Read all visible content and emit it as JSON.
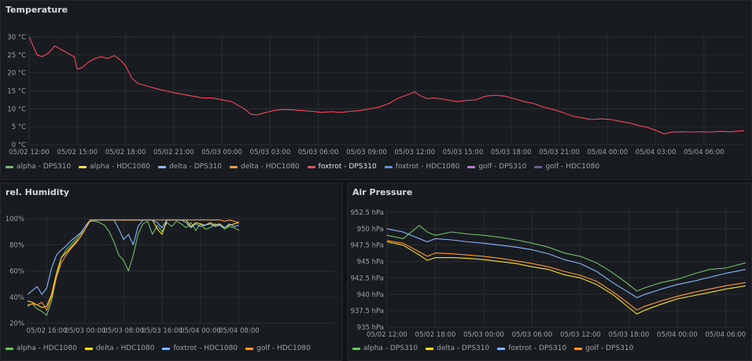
{
  "panels": {
    "temperature": {
      "title": "Temperature",
      "legend": [
        {
          "label": "alpha - DPS310",
          "color": "#73bf69"
        },
        {
          "label": "alpha - HDC1080",
          "color": "#fade2a"
        },
        {
          "label": "delta - DPS310",
          "color": "#8ab8ff"
        },
        {
          "label": "delta - HDC1080",
          "color": "#ff9830"
        },
        {
          "label": "foxtrot - DPS310",
          "color": "#f2495c",
          "active": true
        },
        {
          "label": "foxtrot - HDC1080",
          "color": "#5794f2"
        },
        {
          "label": "golf - DPS310",
          "color": "#b877d9"
        },
        {
          "label": "golf - HDC1080",
          "color": "#705da0"
        }
      ]
    },
    "humidity": {
      "title": "rel. Humidity",
      "legend": [
        {
          "label": "alpha - HDC1080",
          "color": "#73bf69"
        },
        {
          "label": "delta - HDC1080",
          "color": "#fade2a"
        },
        {
          "label": "foxtrot - HDC1080",
          "color": "#8ab8ff"
        },
        {
          "label": "golf - HDC1080",
          "color": "#ff9830"
        }
      ]
    },
    "pressure": {
      "title": "Air Pressure",
      "legend": [
        {
          "label": "alpha - DPS310",
          "color": "#73bf69"
        },
        {
          "label": "delta - DPS310",
          "color": "#fade2a"
        },
        {
          "label": "foxtrot - DPS310",
          "color": "#8ab8ff"
        },
        {
          "label": "golf - DPS310",
          "color": "#ff9830"
        }
      ]
    }
  },
  "chart_data": [
    {
      "type": "line",
      "title": "Temperature",
      "ylim": [
        0,
        30
      ],
      "xlim": [
        0,
        44.5
      ],
      "x_unit": "hours since 05/02 12:00",
      "yticks": [
        {
          "v": 0,
          "label": "0 °C"
        },
        {
          "v": 5,
          "label": "5 °C"
        },
        {
          "v": 10,
          "label": "10 °C"
        },
        {
          "v": 15,
          "label": "15 °C"
        },
        {
          "v": 20,
          "label": "20 °C"
        },
        {
          "v": 25,
          "label": "25 °C"
        },
        {
          "v": 30,
          "label": "30 °C"
        }
      ],
      "xticks": [
        {
          "v": 0,
          "label": "05/02 12:00"
        },
        {
          "v": 3,
          "label": "05/02 15:00"
        },
        {
          "v": 6,
          "label": "05/02 18:00"
        },
        {
          "v": 9,
          "label": "05/02 21:00"
        },
        {
          "v": 12,
          "label": "05/03 00:00"
        },
        {
          "v": 15,
          "label": "05/03 03:00"
        },
        {
          "v": 18,
          "label": "05/03 06:00"
        },
        {
          "v": 21,
          "label": "05/03 09:00"
        },
        {
          "v": 24,
          "label": "05/03 12:00"
        },
        {
          "v": 27,
          "label": "05/03 15:00"
        },
        {
          "v": 30,
          "label": "05/03 18:00"
        },
        {
          "v": 33,
          "label": "05/03 21:00"
        },
        {
          "v": 36,
          "label": "05/04 00:00"
        },
        {
          "v": 39,
          "label": "05/04 03:00"
        },
        {
          "v": 42,
          "label": "05/04 06:00"
        }
      ],
      "series": [
        {
          "name": "foxtrot - DPS310",
          "color": "#f2495c",
          "x": [
            0,
            0.2,
            0.5,
            0.8,
            1.2,
            1.6,
            2.0,
            2.4,
            2.8,
            3.0,
            3.3,
            3.7,
            4.1,
            4.5,
            4.9,
            5.3,
            5.7,
            6.0,
            6.4,
            6.8,
            7.2,
            7.6,
            8.0,
            8.5,
            9.0,
            9.6,
            10.2,
            10.8,
            11.4,
            12.0,
            12.6,
            13.0,
            13.4,
            13.8,
            14.2,
            14.6,
            15.2,
            15.8,
            16.4,
            17.0,
            17.6,
            18.2,
            18.8,
            19.4,
            20.0,
            20.6,
            21.2,
            21.8,
            22.4,
            23.0,
            23.6,
            24.0,
            24.4,
            24.8,
            25.2,
            25.6,
            26.0,
            26.6,
            27.2,
            27.8,
            28.4,
            29.0,
            29.6,
            30.2,
            30.8,
            31.4,
            32.0,
            32.6,
            33.2,
            33.8,
            34.4,
            35.0,
            35.6,
            36.2,
            36.8,
            37.4,
            38.0,
            38.5,
            39.0,
            39.5,
            40.0,
            40.6,
            41.2,
            41.8,
            42.4,
            43.0,
            43.6,
            44.2,
            44.5
          ],
          "y": [
            30,
            28,
            25,
            24.5,
            25.5,
            27.5,
            26.5,
            25.5,
            24.5,
            21,
            21.5,
            23,
            24,
            24.5,
            24,
            24.8,
            23.5,
            22,
            18.5,
            17,
            16.5,
            16,
            15.5,
            15,
            14.5,
            14,
            13.5,
            13,
            13,
            12.5,
            12,
            11,
            10,
            8.5,
            8.3,
            8.8,
            9.5,
            9.8,
            9.7,
            9.5,
            9.3,
            9.0,
            9.2,
            9.0,
            9.3,
            9.5,
            10,
            10.5,
            11.5,
            13,
            14,
            14.7,
            13.5,
            12.8,
            13.0,
            12.8,
            12.5,
            12.0,
            12.3,
            12.5,
            13.5,
            13.8,
            13.5,
            12.8,
            12.0,
            11.5,
            10.5,
            9.8,
            9.0,
            8.0,
            7.5,
            7.0,
            7.2,
            7.0,
            6.5,
            6.0,
            5.3,
            4.8,
            4.0,
            3.0,
            3.5,
            3.6,
            3.5,
            3.6,
            3.5,
            3.7,
            3.6,
            3.8,
            3.9
          ]
        }
      ]
    },
    {
      "type": "line",
      "title": "rel. Humidity",
      "ylim": [
        20,
        100
      ],
      "xlim": [
        0,
        64
      ],
      "x_unit": "hours since 05/02 12:00",
      "yticks": [
        {
          "v": 20,
          "label": "20%"
        },
        {
          "v": 40,
          "label": "40%"
        },
        {
          "v": 60,
          "label": "60%"
        },
        {
          "v": 80,
          "label": "80%"
        },
        {
          "v": 100,
          "label": "100%"
        }
      ],
      "xticks": [
        {
          "v": 4,
          "label": "05/02 16:00"
        },
        {
          "v": 12,
          "label": "05/03 00:00"
        },
        {
          "v": 20,
          "label": "05/03 08:00"
        },
        {
          "v": 28,
          "label": "05/03 16:00"
        },
        {
          "v": 36,
          "label": "05/04 00:00"
        },
        {
          "v": 44,
          "label": "05/04 08:00"
        }
      ],
      "series": [
        {
          "name": "alpha - HDC1080",
          "color": "#73bf69",
          "x": [
            0,
            1,
            2,
            3,
            4,
            5,
            6,
            7,
            8,
            9,
            10,
            11,
            12,
            13,
            14,
            15,
            16,
            17,
            18,
            19,
            20,
            21,
            22,
            23,
            24,
            25,
            26,
            27,
            28,
            29,
            30,
            31,
            32,
            33,
            34,
            35,
            36,
            37,
            38,
            39,
            40,
            41,
            42,
            43,
            44
          ],
          "y": [
            33,
            35,
            31,
            29,
            26,
            37,
            55,
            70,
            76,
            80,
            84,
            88,
            92,
            98,
            98,
            97,
            95,
            90,
            82,
            72,
            68,
            60,
            72,
            88,
            96,
            98,
            88,
            95,
            90,
            97,
            94,
            98,
            96,
            93,
            97,
            91,
            96,
            92,
            93,
            96,
            95,
            92,
            94,
            93,
            91
          ]
        },
        {
          "name": "delta - HDC1080",
          "color": "#fade2a",
          "x": [
            0,
            1,
            2,
            3,
            4,
            5,
            6,
            7,
            8,
            9,
            10,
            11,
            12,
            13,
            14,
            15,
            16,
            17,
            18,
            19,
            20,
            21,
            22,
            23,
            24,
            25,
            26,
            27,
            28,
            29,
            30,
            31,
            32,
            33,
            34,
            35,
            36,
            37,
            38,
            39,
            40,
            41,
            42,
            43,
            44
          ],
          "y": [
            37,
            36,
            34,
            32,
            33,
            42,
            58,
            70,
            74,
            78,
            82,
            86,
            92,
            99,
            99,
            99,
            99,
            99,
            99,
            99,
            99,
            99,
            99,
            99,
            99,
            99,
            99,
            92,
            88,
            99,
            99,
            99,
            99,
            99,
            94,
            97,
            96,
            95,
            97,
            95,
            96,
            93,
            95,
            96,
            97
          ]
        },
        {
          "name": "foxtrot - HDC1080",
          "color": "#8ab8ff",
          "x": [
            0,
            1,
            2,
            3,
            4,
            5,
            6,
            7,
            8,
            9,
            10,
            11,
            12,
            13,
            14,
            15,
            16,
            17,
            18,
            19,
            20,
            21,
            22,
            23,
            24,
            25,
            26,
            27,
            28,
            29,
            30,
            31,
            32,
            33,
            34,
            35,
            36,
            37,
            38,
            39,
            40,
            41,
            42,
            43,
            44
          ],
          "y": [
            42,
            45,
            48,
            42,
            47,
            62,
            72,
            76,
            79,
            83,
            86,
            89,
            94,
            99,
            99,
            99,
            99,
            99,
            99,
            92,
            84,
            88,
            80,
            94,
            99,
            99,
            99,
            97,
            93,
            99,
            99,
            99,
            99,
            97,
            93,
            96,
            94,
            95,
            96,
            94,
            95,
            93,
            96,
            94,
            95
          ]
        },
        {
          "name": "golf - HDC1080",
          "color": "#ff9830",
          "x": [
            0,
            1,
            2,
            3,
            4,
            5,
            6,
            7,
            8,
            9,
            10,
            11,
            12,
            13,
            14,
            15,
            16,
            17,
            18,
            19,
            20,
            21,
            22,
            23,
            24,
            25,
            26,
            27,
            28,
            29,
            30,
            31,
            32,
            33,
            34,
            35,
            36,
            37,
            38,
            39,
            40,
            41,
            42,
            43,
            44
          ],
          "y": [
            34,
            35,
            34,
            36,
            30,
            40,
            55,
            66,
            72,
            77,
            81,
            86,
            92,
            99,
            99,
            99,
            99,
            99,
            99,
            99,
            99,
            99,
            99,
            99,
            99,
            99,
            99,
            99,
            99,
            99,
            99,
            99,
            99,
            99,
            99,
            99,
            99,
            99,
            99,
            99,
            99,
            98,
            99,
            98,
            97
          ]
        }
      ]
    },
    {
      "type": "line",
      "title": "Air Pressure",
      "ylim": [
        935,
        952.5
      ],
      "xlim": [
        0,
        44.5
      ],
      "x_unit": "hours since 05/02 12:00",
      "yticks": [
        {
          "v": 935,
          "label": "935 hPa"
        },
        {
          "v": 937.5,
          "label": "937.5 hPa"
        },
        {
          "v": 940,
          "label": "940 hPa"
        },
        {
          "v": 942.5,
          "label": "942.5 hPa"
        },
        {
          "v": 945,
          "label": "945 hPa"
        },
        {
          "v": 947.5,
          "label": "947.5 hPa"
        },
        {
          "v": 950,
          "label": "950 hPa"
        },
        {
          "v": 952.5,
          "label": "952.5 hPa"
        }
      ],
      "xticks": [
        {
          "v": 0,
          "label": "05/02 12:00"
        },
        {
          "v": 6,
          "label": "05/02 18:00"
        },
        {
          "v": 12,
          "label": "05/03 00:00"
        },
        {
          "v": 18,
          "label": "05/03 06:00"
        },
        {
          "v": 24,
          "label": "05/03 12:00"
        },
        {
          "v": 30,
          "label": "05/03 18:00"
        },
        {
          "v": 36,
          "label": "05/04 00:00"
        },
        {
          "v": 42,
          "label": "05/04 06:00"
        }
      ],
      "series": [
        {
          "name": "alpha - DPS310",
          "color": "#73bf69",
          "x": [
            0,
            2,
            4,
            5,
            6,
            8,
            10,
            12,
            14,
            16,
            18,
            20,
            22,
            24,
            26,
            28,
            30,
            31,
            32,
            34,
            36,
            38,
            40,
            42,
            44.5
          ],
          "y": [
            949,
            948.5,
            950.5,
            949.5,
            949,
            949.5,
            949.2,
            949,
            948.7,
            948.3,
            947.8,
            947.2,
            946.3,
            945.8,
            944.8,
            943.3,
            941.5,
            940.5,
            941.0,
            941.8,
            942.3,
            943.1,
            943.8,
            944.0,
            944.8
          ]
        },
        {
          "name": "delta - DPS310",
          "color": "#fade2a",
          "x": [
            0,
            2,
            4,
            5,
            6,
            8,
            10,
            12,
            14,
            16,
            18,
            20,
            22,
            24,
            26,
            28,
            30,
            31,
            32,
            34,
            36,
            38,
            40,
            42,
            44.5
          ],
          "y": [
            948,
            947.5,
            946.0,
            945.2,
            945.6,
            945.6,
            945.5,
            945.3,
            945.0,
            944.7,
            944.2,
            943.8,
            943.0,
            942.5,
            941.5,
            940.0,
            938.0,
            937.0,
            937.6,
            938.5,
            939.3,
            939.8,
            940.3,
            940.8,
            941.3
          ]
        },
        {
          "name": "foxtrot - DPS310",
          "color": "#8ab8ff",
          "x": [
            0,
            2,
            4,
            5,
            6,
            8,
            10,
            12,
            14,
            16,
            18,
            20,
            22,
            24,
            26,
            28,
            30,
            31,
            32,
            34,
            36,
            38,
            40,
            42,
            44.5
          ],
          "y": [
            950,
            949.5,
            948.5,
            948.0,
            948.5,
            948.3,
            948.0,
            947.8,
            947.5,
            947.2,
            946.8,
            946.2,
            945.3,
            944.7,
            943.5,
            941.8,
            940.3,
            939.5,
            940.0,
            940.8,
            941.5,
            942.0,
            942.6,
            943.2,
            943.8
          ]
        },
        {
          "name": "golf - DPS310",
          "color": "#ff9830",
          "x": [
            0,
            2,
            4,
            5,
            6,
            8,
            10,
            12,
            14,
            16,
            18,
            20,
            22,
            24,
            26,
            28,
            30,
            31,
            32,
            34,
            36,
            38,
            40,
            42,
            44.5
          ],
          "y": [
            948.2,
            947.8,
            946.5,
            945.8,
            946.3,
            946.2,
            946.0,
            945.8,
            945.5,
            945.1,
            944.7,
            944.2,
            943.5,
            942.9,
            942.0,
            940.4,
            938.6,
            937.6,
            938.2,
            939.0,
            939.7,
            940.3,
            940.8,
            941.3,
            941.8
          ]
        }
      ]
    }
  ]
}
